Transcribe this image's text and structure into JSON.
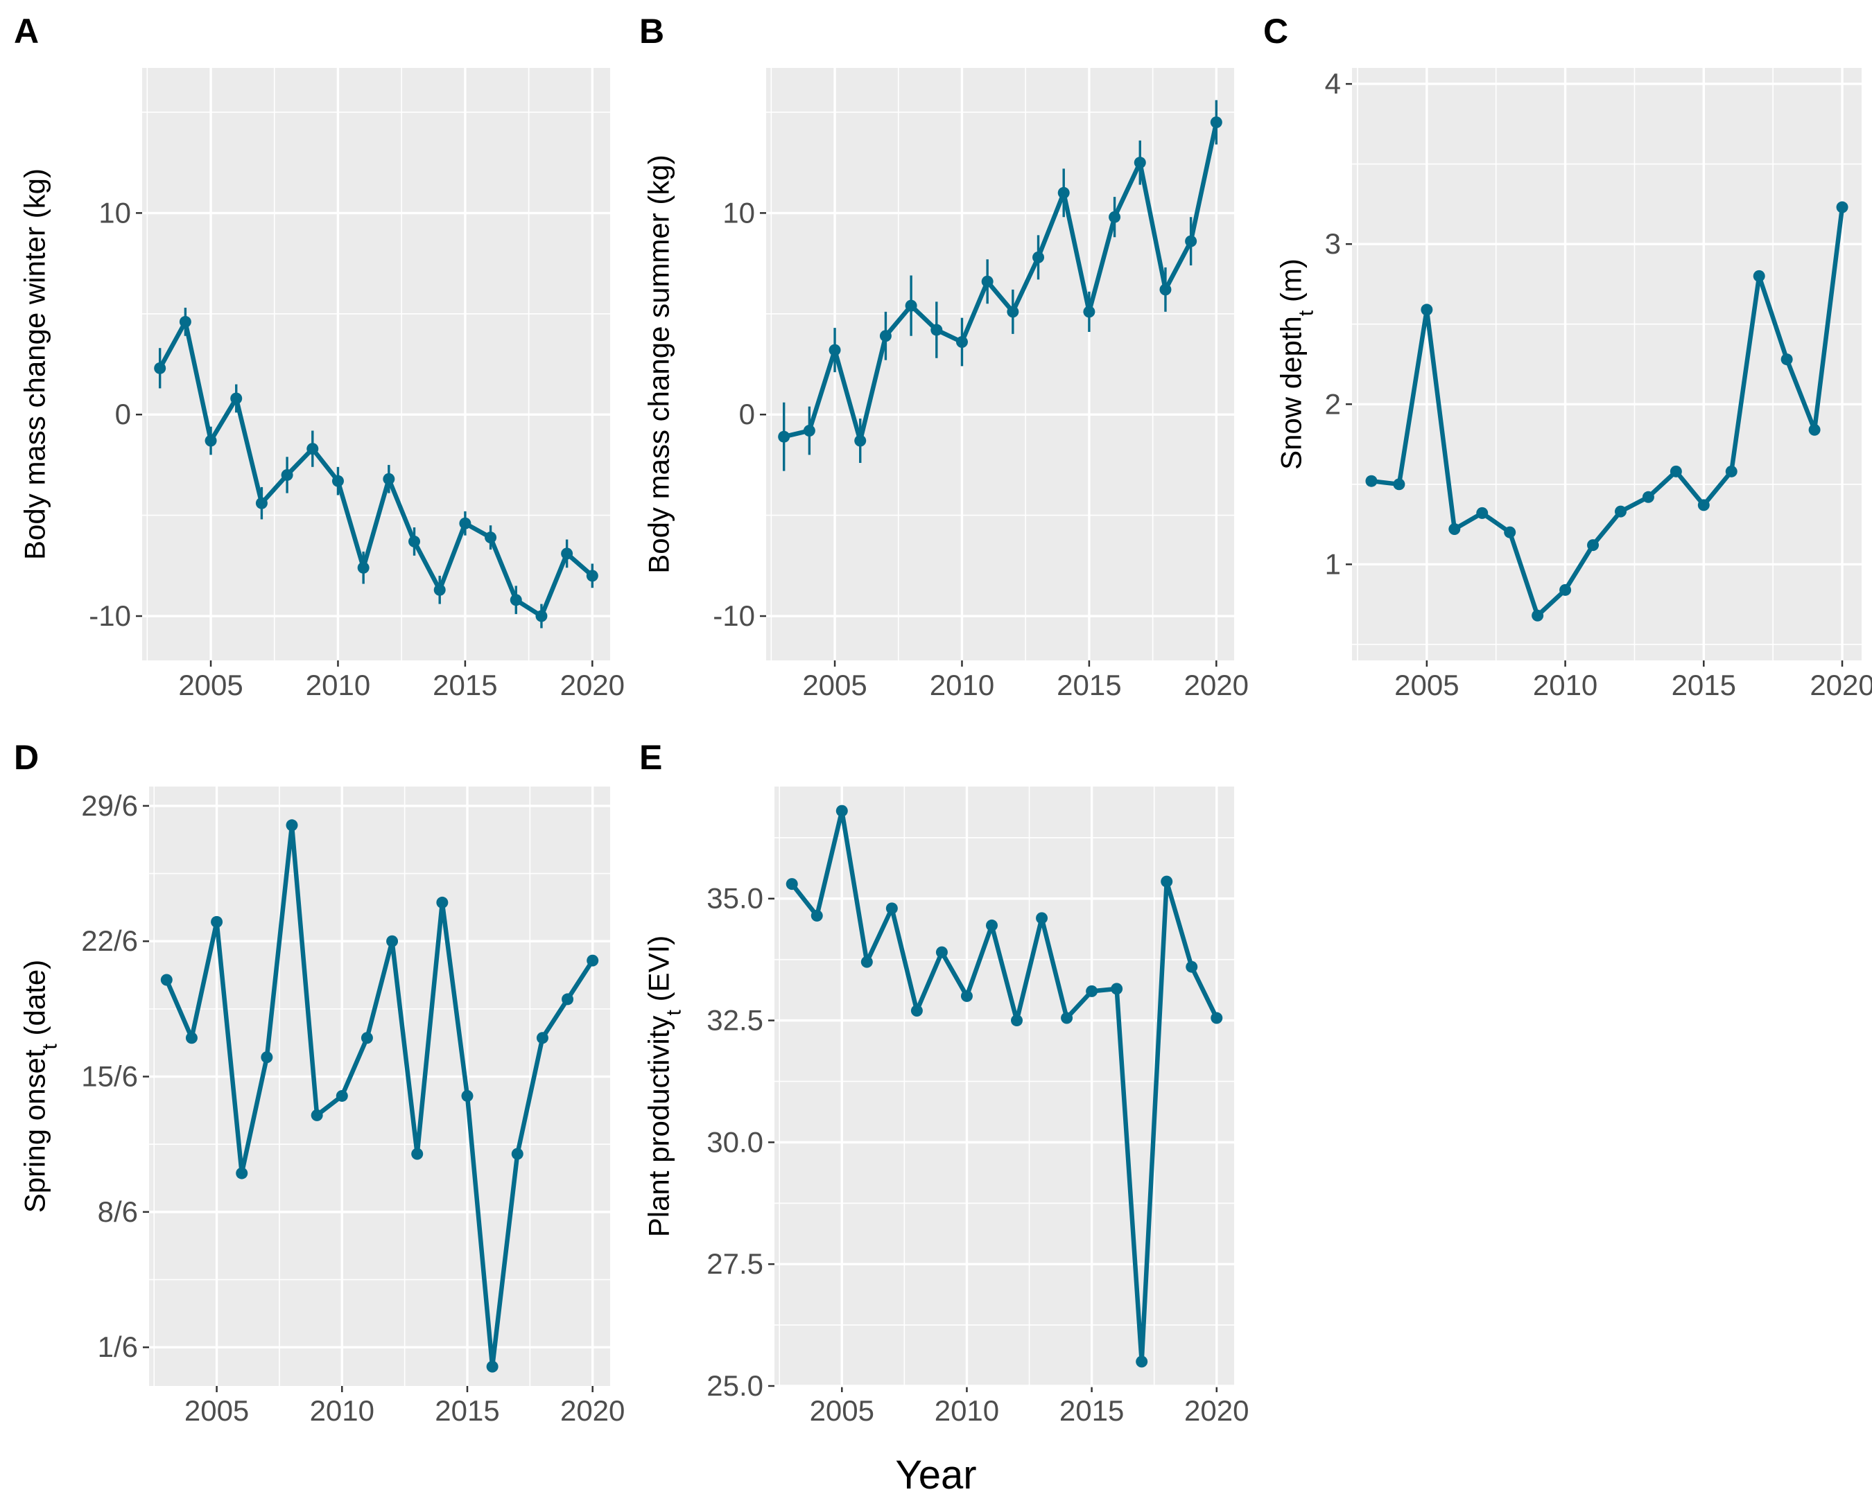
{
  "figure": {
    "x_axis_title": "Year"
  },
  "style": {
    "panel_bg": "#ebebeb",
    "grid_major": "#ffffff",
    "line_color": "#046c8c",
    "tick_text_color": "#4d4d4d"
  },
  "chart_data": [
    {
      "id": "A",
      "type": "line",
      "letter": "A",
      "ylabel": "Body mass change winter (kg)",
      "x": [
        2003,
        2004,
        2005,
        2006,
        2007,
        2008,
        2009,
        2010,
        2011,
        2012,
        2013,
        2014,
        2015,
        2016,
        2017,
        2018,
        2019,
        2020
      ],
      "y": [
        2.3,
        4.6,
        -1.3,
        0.8,
        -4.4,
        -3.0,
        -1.7,
        -3.3,
        -7.6,
        -3.2,
        -6.3,
        -8.7,
        -5.4,
        -6.1,
        -9.2,
        -10.0,
        -6.9,
        -8.0
      ],
      "err": [
        1.0,
        0.7,
        0.7,
        0.7,
        0.8,
        0.9,
        0.9,
        0.7,
        0.8,
        0.7,
        0.7,
        0.7,
        0.6,
        0.6,
        0.7,
        0.6,
        0.7,
        0.6
      ],
      "xlim": [
        2002.3,
        2020.7
      ],
      "ylim": [
        -12.2,
        17.2
      ],
      "xticks": [
        2005,
        2010,
        2015,
        2020
      ],
      "yticks": [
        -10,
        0,
        10
      ],
      "ytick_labels": [
        "-10",
        "0",
        "10"
      ],
      "grid": true
    },
    {
      "id": "B",
      "type": "line",
      "letter": "B",
      "ylabel": "Body mass change summer (kg)",
      "x": [
        2003,
        2004,
        2005,
        2006,
        2007,
        2008,
        2009,
        2010,
        2011,
        2012,
        2013,
        2014,
        2015,
        2016,
        2017,
        2018,
        2019,
        2020
      ],
      "y": [
        -1.1,
        -0.8,
        3.2,
        -1.3,
        3.9,
        5.4,
        4.2,
        3.6,
        6.6,
        5.1,
        7.8,
        11.0,
        5.1,
        9.8,
        12.5,
        6.2,
        8.6,
        14.5
      ],
      "err": [
        1.7,
        1.2,
        1.1,
        1.1,
        1.2,
        1.5,
        1.4,
        1.2,
        1.1,
        1.1,
        1.1,
        1.2,
        1.0,
        1.0,
        1.1,
        1.1,
        1.2,
        1.1
      ],
      "xlim": [
        2002.3,
        2020.7
      ],
      "ylim": [
        -12.2,
        17.2
      ],
      "xticks": [
        2005,
        2010,
        2015,
        2020
      ],
      "yticks": [
        -10,
        0,
        10
      ],
      "ytick_labels": [
        "-10",
        "0",
        "10"
      ],
      "grid": true
    },
    {
      "id": "C",
      "type": "line",
      "letter": "C",
      "ylabel": "Snow depth",
      "ylabel_sub": "t",
      "ylabel_suffix": " (m)",
      "x": [
        2003,
        2004,
        2005,
        2006,
        2007,
        2008,
        2009,
        2010,
        2011,
        2012,
        2013,
        2014,
        2015,
        2016,
        2017,
        2018,
        2019,
        2020
      ],
      "y": [
        1.52,
        1.5,
        2.59,
        1.22,
        1.32,
        1.2,
        0.68,
        0.84,
        1.12,
        1.33,
        1.42,
        1.58,
        1.37,
        1.58,
        2.8,
        2.28,
        1.84,
        3.23
      ],
      "xlim": [
        2002.3,
        2020.7
      ],
      "ylim": [
        0.4,
        4.1
      ],
      "xticks": [
        2005,
        2010,
        2015,
        2020
      ],
      "yticks": [
        1,
        2,
        3,
        4
      ],
      "ytick_labels": [
        "1",
        "2",
        "3",
        "4"
      ],
      "grid": true
    },
    {
      "id": "D",
      "type": "line",
      "letter": "D",
      "ylabel": "Spring onset",
      "ylabel_sub": "t",
      "ylabel_suffix": " (date)",
      "x_unit": "year",
      "y_unit": "date (day/month)",
      "x": [
        2003,
        2004,
        2005,
        2006,
        2007,
        2008,
        2009,
        2010,
        2011,
        2012,
        2013,
        2014,
        2015,
        2016,
        2017,
        2018,
        2019,
        2020
      ],
      "y": [
        "20/6",
        "17/6",
        "23/6",
        "10/6",
        "16/6",
        "28/6",
        "13/6",
        "14/6",
        "17/6",
        "22/6",
        "11/6",
        "24/6",
        "14/6",
        "31/5",
        "11/6",
        "17/6",
        "19/6",
        "21/6"
      ],
      "xlim": [
        2002.3,
        2020.7
      ],
      "ylim": [
        "30/5",
        "30/6"
      ],
      "xticks": [
        2005,
        2010,
        2015,
        2020
      ],
      "yticks": [
        "1/6",
        "8/6",
        "15/6",
        "22/6",
        "29/6"
      ],
      "ytick_labels": [
        "1/6",
        "8/6",
        "15/6",
        "22/6",
        "29/6"
      ],
      "grid": true
    },
    {
      "id": "E",
      "type": "line",
      "letter": "E",
      "ylabel": "Plant productivity",
      "ylabel_sub": "t",
      "ylabel_suffix": " (EVI)",
      "x": [
        2003,
        2004,
        2005,
        2006,
        2007,
        2008,
        2009,
        2010,
        2011,
        2012,
        2013,
        2014,
        2015,
        2016,
        2017,
        2018,
        2019,
        2020
      ],
      "y": [
        35.3,
        34.65,
        36.8,
        33.7,
        34.8,
        32.7,
        33.9,
        33.0,
        34.45,
        32.5,
        34.6,
        32.55,
        33.1,
        33.15,
        25.5,
        35.35,
        33.6,
        32.55
      ],
      "xlim": [
        2002.3,
        2020.7
      ],
      "ylim": [
        25.0,
        37.3
      ],
      "xticks": [
        2005,
        2010,
        2015,
        2020
      ],
      "yticks": [
        25.0,
        27.5,
        30.0,
        32.5,
        35.0
      ],
      "ytick_labels": [
        "25.0",
        "27.5",
        "30.0",
        "32.5",
        "35.0"
      ],
      "grid": true
    }
  ]
}
